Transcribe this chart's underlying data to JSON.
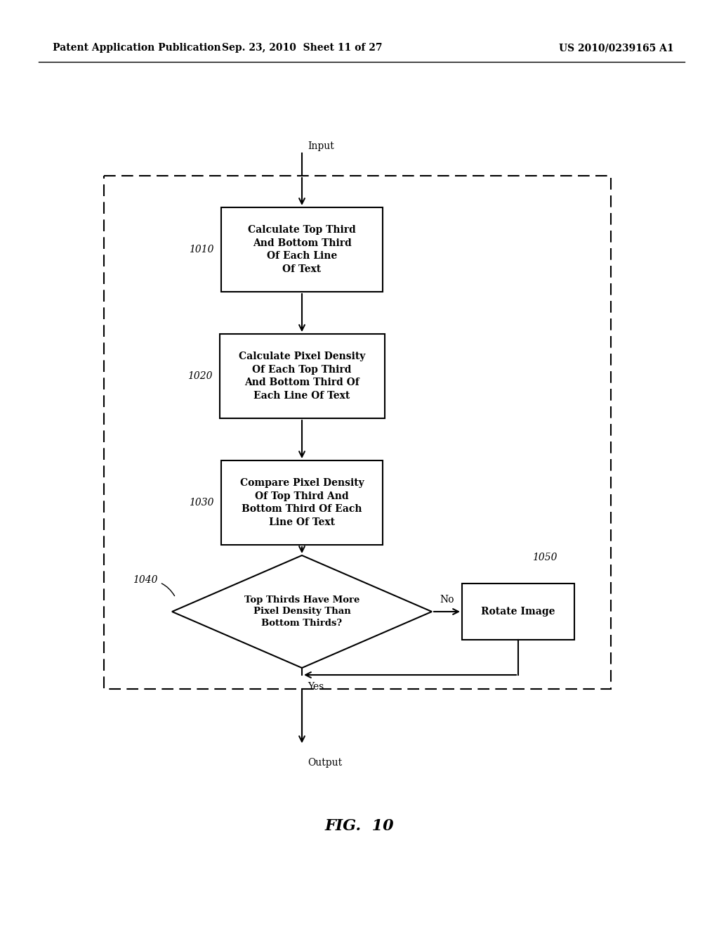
{
  "title_left": "Patent Application Publication",
  "title_center": "Sep. 23, 2010  Sheet 11 of 27",
  "title_right": "US 2010/0239165 A1",
  "fig_label": "FIG.  10",
  "input_label": "Input",
  "output_label": "Output",
  "box1_text": "Calculate Top Third\nAnd Bottom Third\nOf Each Line\nOf Text",
  "box1_label": "1010",
  "box2_text": "Calculate Pixel Density\nOf Each Top Third\nAnd Bottom Third Of\nEach Line Of Text",
  "box2_label": "1020",
  "box3_text": "Compare Pixel Density\nOf Top Third And\nBottom Third Of Each\nLine Of Text",
  "box3_label": "1030",
  "diamond_text": "Top Thirds Have More\nPixel Density Than\nBottom Thirds?",
  "diamond_label": "1040",
  "rotate_text": "Rotate Image",
  "rotate_label": "1050",
  "yes_label": "Yes",
  "no_label": "No",
  "bg_color": "#ffffff",
  "box_color": "#ffffff",
  "line_color": "#000000",
  "text_color": "#000000",
  "label_color": "#333333"
}
